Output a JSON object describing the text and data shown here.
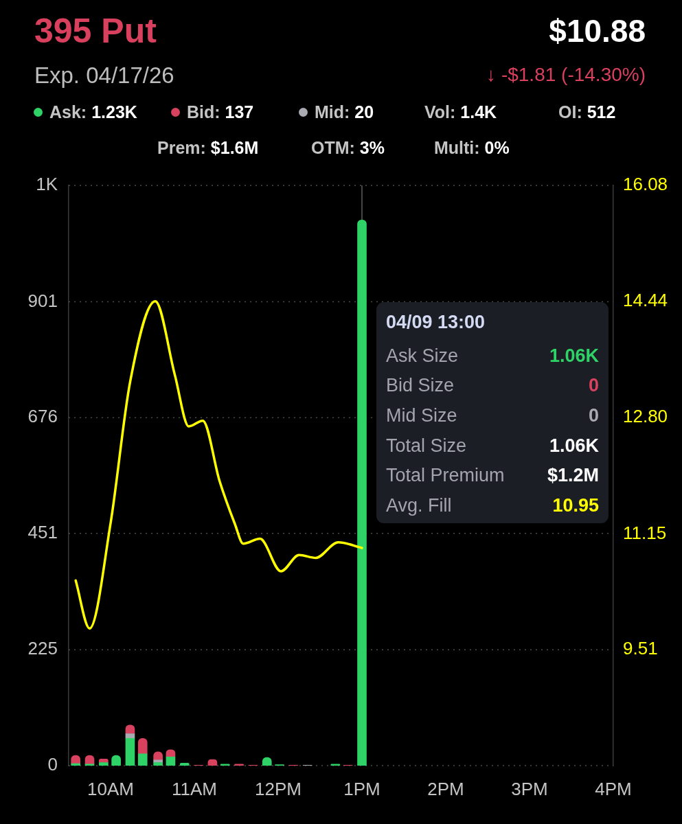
{
  "chart_data": {
    "type": "bar",
    "title": "395 Put",
    "subtitle": "Exp. 04/17/26",
    "annotations": [
      "$10.88",
      "↓ -$1.81 (-14.30%)",
      "Ask: 1.23K",
      "Bid: 137",
      "Mid: 20",
      "Vol: 1.4K",
      "OI: 512",
      "Prem: $1.6M",
      "OTM: 3%",
      "Multi: 0%",
      "04/09 13:00",
      "Ask Size",
      "1.06K",
      "Bid Size",
      "0",
      "Mid Size",
      "0",
      "Total Size",
      "1.06K",
      "Total Premium",
      "$1.2M",
      "Avg. Fill",
      "10.95"
    ],
    "x": [
      "--04-09T09:35",
      "--04-09T09:45",
      "--04-09T09:55",
      "--04-09T10:04",
      "--04-09T10:14",
      "--04-09T10:23",
      "--04-09T10:34",
      "--04-09T10:43",
      "--04-09T10:53",
      "--04-09T11:03",
      "--04-09T11:13",
      "--04-09T11:22",
      "--04-09T11:32",
      "--04-09T11:42",
      "--04-09T11:52",
      "--04-09T12:01",
      "--04-09T12:11",
      "--04-09T12:21",
      "--04-09T12:41",
      "--04-09T12:50",
      "--04-09T13:00"
    ],
    "xlim": [
      "--04-09T09:30",
      "--04-09T16:00"
    ],
    "xticks": [
      {
        "value": "--04-09T10:00",
        "label": "10AM"
      },
      {
        "value": "--04-09T11:00",
        "label": "11AM"
      },
      {
        "value": "--04-09T12:00",
        "label": "12PM"
      },
      {
        "value": "--04-09T13:00",
        "label": "1PM"
      },
      {
        "value": "--04-09T14:00",
        "label": "2PM"
      },
      {
        "value": "--04-09T15:00",
        "label": "3PM"
      },
      {
        "value": "--04-09T16:00",
        "label": "4PM"
      }
    ],
    "ylim": [
      0,
      1127
    ],
    "yticks": [
      0,
      225,
      451,
      676,
      901,
      {
        "value": 1127,
        "label": "1K"
      }
    ],
    "y2lim": [
      7.87,
      16.08
    ],
    "y2ticks": [
      9.51,
      11.15,
      {
        "value": 12.8,
        "label": "12.80"
      },
      14.44,
      16.08
    ],
    "stacked": true,
    "grid": "y",
    "series": [
      {
        "color": "#2fd266",
        "values": [
          4,
          3,
          6,
          20,
          53,
          23,
          6,
          17,
          5,
          null,
          null,
          3,
          null,
          null,
          16,
          2,
          null,
          null,
          3,
          null,
          1060
        ]
      },
      {
        "color": "#a9aab2",
        "values": [
          null,
          null,
          null,
          null,
          9,
          null,
          5,
          null,
          null,
          null,
          null,
          null,
          null,
          null,
          null,
          null,
          null,
          1,
          null,
          null,
          null
        ]
      },
      {
        "color": "#d8425e",
        "values": [
          16,
          17,
          7,
          null,
          17,
          30,
          16,
          14,
          null,
          1,
          12,
          null,
          3,
          1,
          null,
          null,
          1,
          null,
          null,
          1,
          null
        ]
      },
      {
        "type": "line",
        "axis": "y2",
        "color": "#ffff00",
        "x": [
          "--04-09T09:35",
          "--04-09T09:45",
          "--04-09T10:00",
          "--04-09T10:14",
          "--04-09T10:32",
          "--04-09T10:46",
          "--04-09T10:56",
          "--04-09T11:06",
          "--04-09T11:18",
          "--04-09T11:29",
          "--04-09T11:35",
          "--04-09T11:47",
          "--04-09T12:02",
          "--04-09T12:15",
          "--04-09T12:27",
          "--04-09T12:43",
          "--04-09T13:00"
        ],
        "values": [
          10.49,
          9.81,
          11.3,
          13.3,
          14.44,
          13.4,
          12.67,
          12.75,
          11.9,
          11.29,
          11.01,
          11.08,
          10.62,
          10.85,
          10.81,
          11.03,
          10.95
        ]
      }
    ],
    "ref_lines": [
      {
        "axis": "x",
        "value": "--04-09T13:00",
        "color": "#5e5e5e"
      }
    ]
  }
}
